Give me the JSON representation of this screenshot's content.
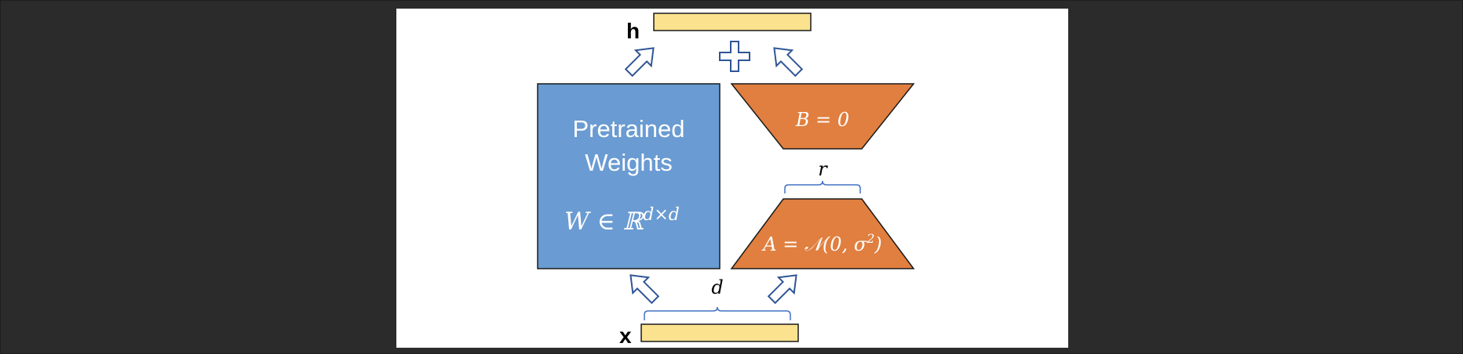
{
  "diagram": {
    "output_label": "h",
    "input_label": "x",
    "pretrained_block": {
      "title_line1": "Pretrained",
      "title_line2": "Weights",
      "formula": "W ∈ ℝ",
      "formula_sup": "d×d"
    },
    "lora_b": {
      "formula": "B = 0"
    },
    "lora_a": {
      "formula": "A = 𝒩(0, σ",
      "formula_sup": "2",
      "formula_tail": ")"
    },
    "rank_label": "r",
    "dim_label": "d",
    "plus_symbol": "+"
  },
  "colors": {
    "pretrained_fill": "#6a9bd2",
    "lora_fill": "#e07f3f",
    "vector_fill": "#fbe28f",
    "arrow_stroke": "#2f5597",
    "brace_stroke": "#4472c4",
    "background": "#ffffff",
    "outer_background": "#2b2b2b"
  }
}
